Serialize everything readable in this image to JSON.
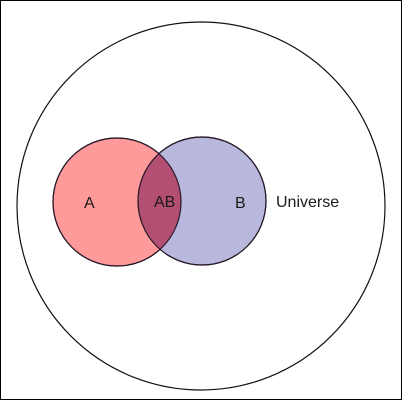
{
  "diagram": {
    "universe_label": "Universe",
    "set_a_label": "A",
    "set_b_label": "B",
    "intersection_label": "AB",
    "colors": {
      "set_a_fill": "#ff9a9a",
      "set_b_fill": "#b8b8dc",
      "intersection_fill": "#b34f72",
      "stroke": "#2a1a2a",
      "universe_stroke": "#111111"
    }
  }
}
